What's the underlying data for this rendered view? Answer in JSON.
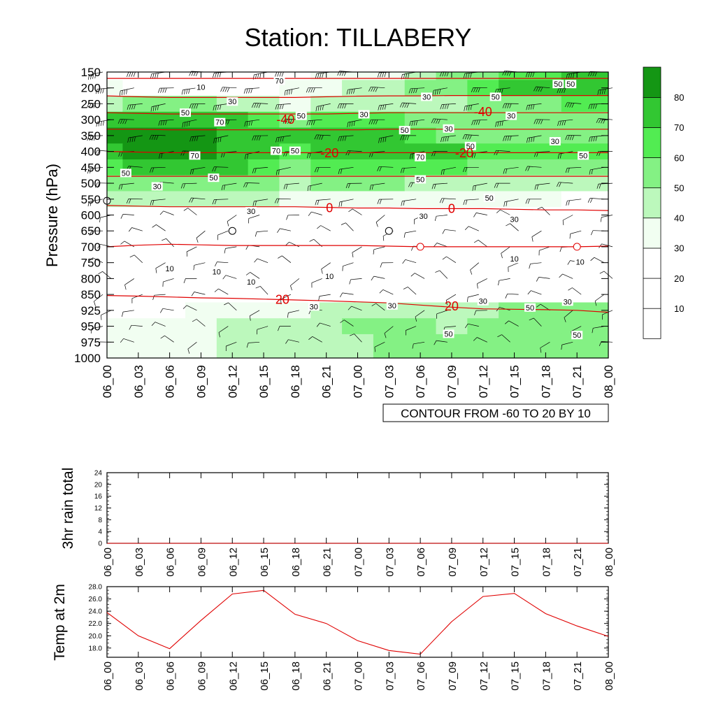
{
  "title": "Station: TILLABERY",
  "time_labels": [
    "06_00",
    "06_03",
    "06_06",
    "06_09",
    "06_12",
    "06_15",
    "06_18",
    "06_21",
    "07_00",
    "07_03",
    "07_06",
    "07_09",
    "07_12",
    "07_15",
    "07_18",
    "07_21",
    "08_00"
  ],
  "colors": {
    "rh_levels": [
      "#ffffff",
      "#ffffff",
      "#ffffff",
      "#f1fef1",
      "#bcf8bc",
      "#84f184",
      "#52ec52",
      "#32c732",
      "#149614"
    ],
    "temperature_contour": "#e00000",
    "temp_line": "#e00000"
  },
  "chart_data": [
    {
      "type": "heatmap",
      "name": "rh-cross-section",
      "ylabel": "Pressure (hPa)",
      "y_ticks": [
        150,
        200,
        250,
        300,
        350,
        400,
        450,
        500,
        550,
        600,
        650,
        700,
        750,
        800,
        850,
        925,
        950,
        975,
        1000
      ],
      "info_label": "CONTOUR FROM -60 TO 20 BY 10",
      "colorbar": {
        "boundaries": [
          10,
          20,
          30,
          40,
          50,
          60,
          70,
          80
        ],
        "labels": [
          "10",
          "20",
          "30",
          "40",
          "50",
          "60",
          "70",
          "80"
        ]
      },
      "rh_values": [
        [
          20,
          15,
          10,
          10,
          15,
          20,
          25,
          30,
          30,
          35,
          45,
          50,
          55,
          65,
          65,
          70,
          75
        ],
        [
          30,
          25,
          20,
          20,
          25,
          25,
          30,
          35,
          40,
          45,
          50,
          55,
          60,
          70,
          70,
          70,
          75
        ],
        [
          45,
          50,
          55,
          50,
          45,
          40,
          35,
          40,
          45,
          40,
          40,
          45,
          50,
          55,
          55,
          60,
          60
        ],
        [
          70,
          75,
          75,
          75,
          70,
          60,
          55,
          60,
          60,
          60,
          55,
          50,
          50,
          50,
          50,
          50,
          50
        ],
        [
          80,
          80,
          80,
          80,
          78,
          75,
          70,
          75,
          75,
          70,
          65,
          55,
          55,
          50,
          50,
          50,
          50
        ],
        [
          78,
          80,
          80,
          80,
          78,
          78,
          65,
          70,
          72,
          72,
          72,
          70,
          65,
          60,
          60,
          60,
          60
        ],
        [
          68,
          70,
          72,
          72,
          70,
          68,
          55,
          60,
          60,
          62,
          65,
          60,
          58,
          55,
          55,
          55,
          55
        ],
        [
          55,
          55,
          55,
          55,
          52,
          50,
          45,
          50,
          50,
          50,
          48,
          45,
          42,
          42,
          42,
          42,
          42
        ],
        [
          40,
          40,
          40,
          42,
          40,
          40,
          38,
          35,
          35,
          35,
          35,
          30,
          30,
          30,
          30,
          28,
          28
        ],
        [
          25,
          25,
          25,
          25,
          25,
          25,
          25,
          25,
          25,
          25,
          25,
          25,
          25,
          25,
          25,
          25,
          25
        ],
        [
          20,
          20,
          20,
          20,
          20,
          20,
          20,
          20,
          20,
          20,
          20,
          20,
          20,
          20,
          20,
          20,
          20
        ],
        [
          20,
          20,
          20,
          20,
          20,
          20,
          20,
          20,
          20,
          20,
          20,
          20,
          20,
          20,
          20,
          20,
          20
        ],
        [
          15,
          15,
          12,
          10,
          10,
          10,
          12,
          12,
          12,
          15,
          15,
          15,
          15,
          15,
          15,
          15,
          15
        ],
        [
          10,
          10,
          10,
          10,
          10,
          10,
          10,
          12,
          15,
          15,
          15,
          15,
          15,
          15,
          15,
          15,
          15
        ],
        [
          20,
          20,
          20,
          20,
          22,
          25,
          25,
          25,
          25,
          25,
          25,
          25,
          25,
          25,
          25,
          25,
          25
        ],
        [
          25,
          25,
          25,
          30,
          35,
          35,
          35,
          40,
          45,
          45,
          40,
          40,
          45,
          50,
          50,
          50,
          50
        ],
        [
          30,
          30,
          30,
          35,
          40,
          45,
          40,
          45,
          50,
          50,
          50,
          48,
          50,
          55,
          55,
          55,
          55
        ],
        [
          30,
          30,
          30,
          35,
          40,
          42,
          40,
          45,
          48,
          50,
          50,
          50,
          55,
          55,
          55,
          55,
          55
        ],
        [
          30,
          30,
          30,
          35,
          40,
          42,
          40,
          45,
          48,
          50,
          50,
          50,
          55,
          55,
          55,
          55,
          55
        ]
      ],
      "temp_contour_labels": [
        {
          "text": "-40",
          "x": 5.7,
          "y": 300
        },
        {
          "text": "-40",
          "x": 12.0,
          "y": 275
        },
        {
          "text": "-20",
          "x": 7.1,
          "y": 405
        },
        {
          "text": "-20",
          "x": 11.4,
          "y": 405
        },
        {
          "text": "0",
          "x": 7.1,
          "y": 578
        },
        {
          "text": "0",
          "x": 11.0,
          "y": 580
        },
        {
          "text": "20",
          "x": 5.6,
          "y": 875
        },
        {
          "text": "20",
          "x": 11.0,
          "y": 905
        }
      ],
      "rh_contour_labels": [
        {
          "text": "10",
          "x": 3.0,
          "y": 200
        },
        {
          "text": "70",
          "x": 5.5,
          "y": 180
        },
        {
          "text": "30",
          "x": 4.0,
          "y": 245
        },
        {
          "text": "30",
          "x": 10.2,
          "y": 230
        },
        {
          "text": "50",
          "x": 12.4,
          "y": 230
        },
        {
          "text": "50",
          "x": 14.4,
          "y": 190
        },
        {
          "text": "50",
          "x": 14.8,
          "y": 190
        },
        {
          "text": "50",
          "x": 2.5,
          "y": 280
        },
        {
          "text": "50",
          "x": 6.2,
          "y": 290
        },
        {
          "text": "30",
          "x": 8.2,
          "y": 285
        },
        {
          "text": "30",
          "x": 12.9,
          "y": 290
        },
        {
          "text": "70",
          "x": 3.6,
          "y": 310
        },
        {
          "text": "30",
          "x": 10.9,
          "y": 330
        },
        {
          "text": "50",
          "x": 9.5,
          "y": 335
        },
        {
          "text": "30",
          "x": 14.3,
          "y": 370
        },
        {
          "text": "50",
          "x": 11.6,
          "y": 385
        },
        {
          "text": "70",
          "x": 2.8,
          "y": 415
        },
        {
          "text": "70",
          "x": 5.4,
          "y": 400
        },
        {
          "text": "50",
          "x": 6.0,
          "y": 400
        },
        {
          "text": "70",
          "x": 10.0,
          "y": 420
        },
        {
          "text": "50",
          "x": 15.2,
          "y": 415
        },
        {
          "text": "50",
          "x": 0.6,
          "y": 470
        },
        {
          "text": "50",
          "x": 3.4,
          "y": 485
        },
        {
          "text": "50",
          "x": 10.0,
          "y": 490
        },
        {
          "text": "30",
          "x": 1.6,
          "y": 512
        },
        {
          "text": "50",
          "x": 12.2,
          "y": 548
        },
        {
          "text": "30",
          "x": 4.6,
          "y": 590
        },
        {
          "text": "30",
          "x": 10.1,
          "y": 605
        },
        {
          "text": "30",
          "x": 13.0,
          "y": 615
        },
        {
          "text": "10",
          "x": 2.0,
          "y": 770
        },
        {
          "text": "10",
          "x": 3.5,
          "y": 780
        },
        {
          "text": "10",
          "x": 4.6,
          "y": 812
        },
        {
          "text": "10",
          "x": 7.1,
          "y": 795
        },
        {
          "text": "10",
          "x": 13.0,
          "y": 740
        },
        {
          "text": "10",
          "x": 15.1,
          "y": 750
        },
        {
          "text": "30",
          "x": 6.6,
          "y": 910
        },
        {
          "text": "30",
          "x": 9.1,
          "y": 905
        },
        {
          "text": "30",
          "x": 12.0,
          "y": 885
        },
        {
          "text": "50",
          "x": 13.5,
          "y": 915
        },
        {
          "text": "30",
          "x": 14.7,
          "y": 887
        },
        {
          "text": "50",
          "x": 10.9,
          "y": 963
        },
        {
          "text": "50",
          "x": 15.0,
          "y": 965
        }
      ],
      "temp_isolines": [
        {
          "level": -60,
          "p": [
            170,
            170,
            170,
            170,
            170,
            170,
            170,
            170,
            170,
            170,
            170,
            170,
            170,
            170,
            170,
            170,
            170
          ]
        },
        {
          "level": -50,
          "p": [
            225,
            228,
            230,
            230,
            230,
            230,
            230,
            228,
            226,
            225,
            225,
            224,
            224,
            224,
            224,
            224,
            224
          ]
        },
        {
          "level": -40,
          "p": [
            278,
            280,
            282,
            282,
            282,
            282,
            282,
            282,
            280,
            278,
            278,
            278,
            278,
            278,
            278,
            278,
            278
          ]
        },
        {
          "level": -30,
          "p": [
            330,
            330,
            332,
            332,
            332,
            332,
            332,
            332,
            332,
            330,
            330,
            330,
            330,
            330,
            330,
            330,
            330
          ]
        },
        {
          "level": -20,
          "p": [
            400,
            402,
            404,
            404,
            404,
            404,
            404,
            404,
            404,
            404,
            404,
            404,
            404,
            404,
            404,
            404,
            404
          ]
        },
        {
          "level": -10,
          "p": [
            478,
            478,
            478,
            478,
            478,
            478,
            478,
            478,
            478,
            478,
            478,
            478,
            478,
            478,
            478,
            478,
            478
          ]
        },
        {
          "level": 0,
          "p": [
            570,
            572,
            574,
            574,
            574,
            574,
            574,
            576,
            578,
            578,
            580,
            580,
            580,
            582,
            584,
            584,
            586
          ]
        },
        {
          "level": 10,
          "p": [
            700,
            695,
            692,
            694,
            696,
            696,
            696,
            696,
            696,
            698,
            700,
            700,
            700,
            700,
            700,
            700,
            698
          ]
        },
        {
          "level": 20,
          "p": [
            855,
            858,
            862,
            866,
            868,
            872,
            876,
            880,
            885,
            890,
            900,
            910,
            918,
            920,
            922,
            925,
            928
          ]
        }
      ],
      "circles": [
        {
          "x": 0.0,
          "y": 555,
          "color": "#000000"
        },
        {
          "x": 4.0,
          "y": 650,
          "color": "#000000"
        },
        {
          "x": 9.0,
          "y": 650,
          "color": "#000000"
        },
        {
          "x": 10.0,
          "y": 700,
          "color": "#e00000"
        },
        {
          "x": 15.0,
          "y": 700,
          "color": "#e00000"
        }
      ]
    },
    {
      "type": "line",
      "name": "rain-panel",
      "ylabel": "3hr rain total",
      "ylim": [
        0,
        24
      ],
      "y_ticks": [
        "0",
        "4",
        "8",
        "12",
        "16",
        "20",
        "24"
      ],
      "values": [
        0,
        0,
        0,
        0,
        0,
        0,
        0,
        0,
        0,
        0,
        0,
        0,
        0,
        0,
        0,
        0,
        0
      ]
    },
    {
      "type": "line",
      "name": "temp-panel",
      "ylabel": "Temp at 2m",
      "ylim": [
        16.5,
        28.0
      ],
      "y_ticks": [
        "18.0",
        "20.0",
        "22.0",
        "24.0",
        "26.0",
        "28.0"
      ],
      "values": [
        23.8,
        20.0,
        17.9,
        22.5,
        26.8,
        27.4,
        23.5,
        22.0,
        19.2,
        17.6,
        17.0,
        22.3,
        26.4,
        26.9,
        23.6,
        21.6,
        19.9
      ]
    }
  ]
}
